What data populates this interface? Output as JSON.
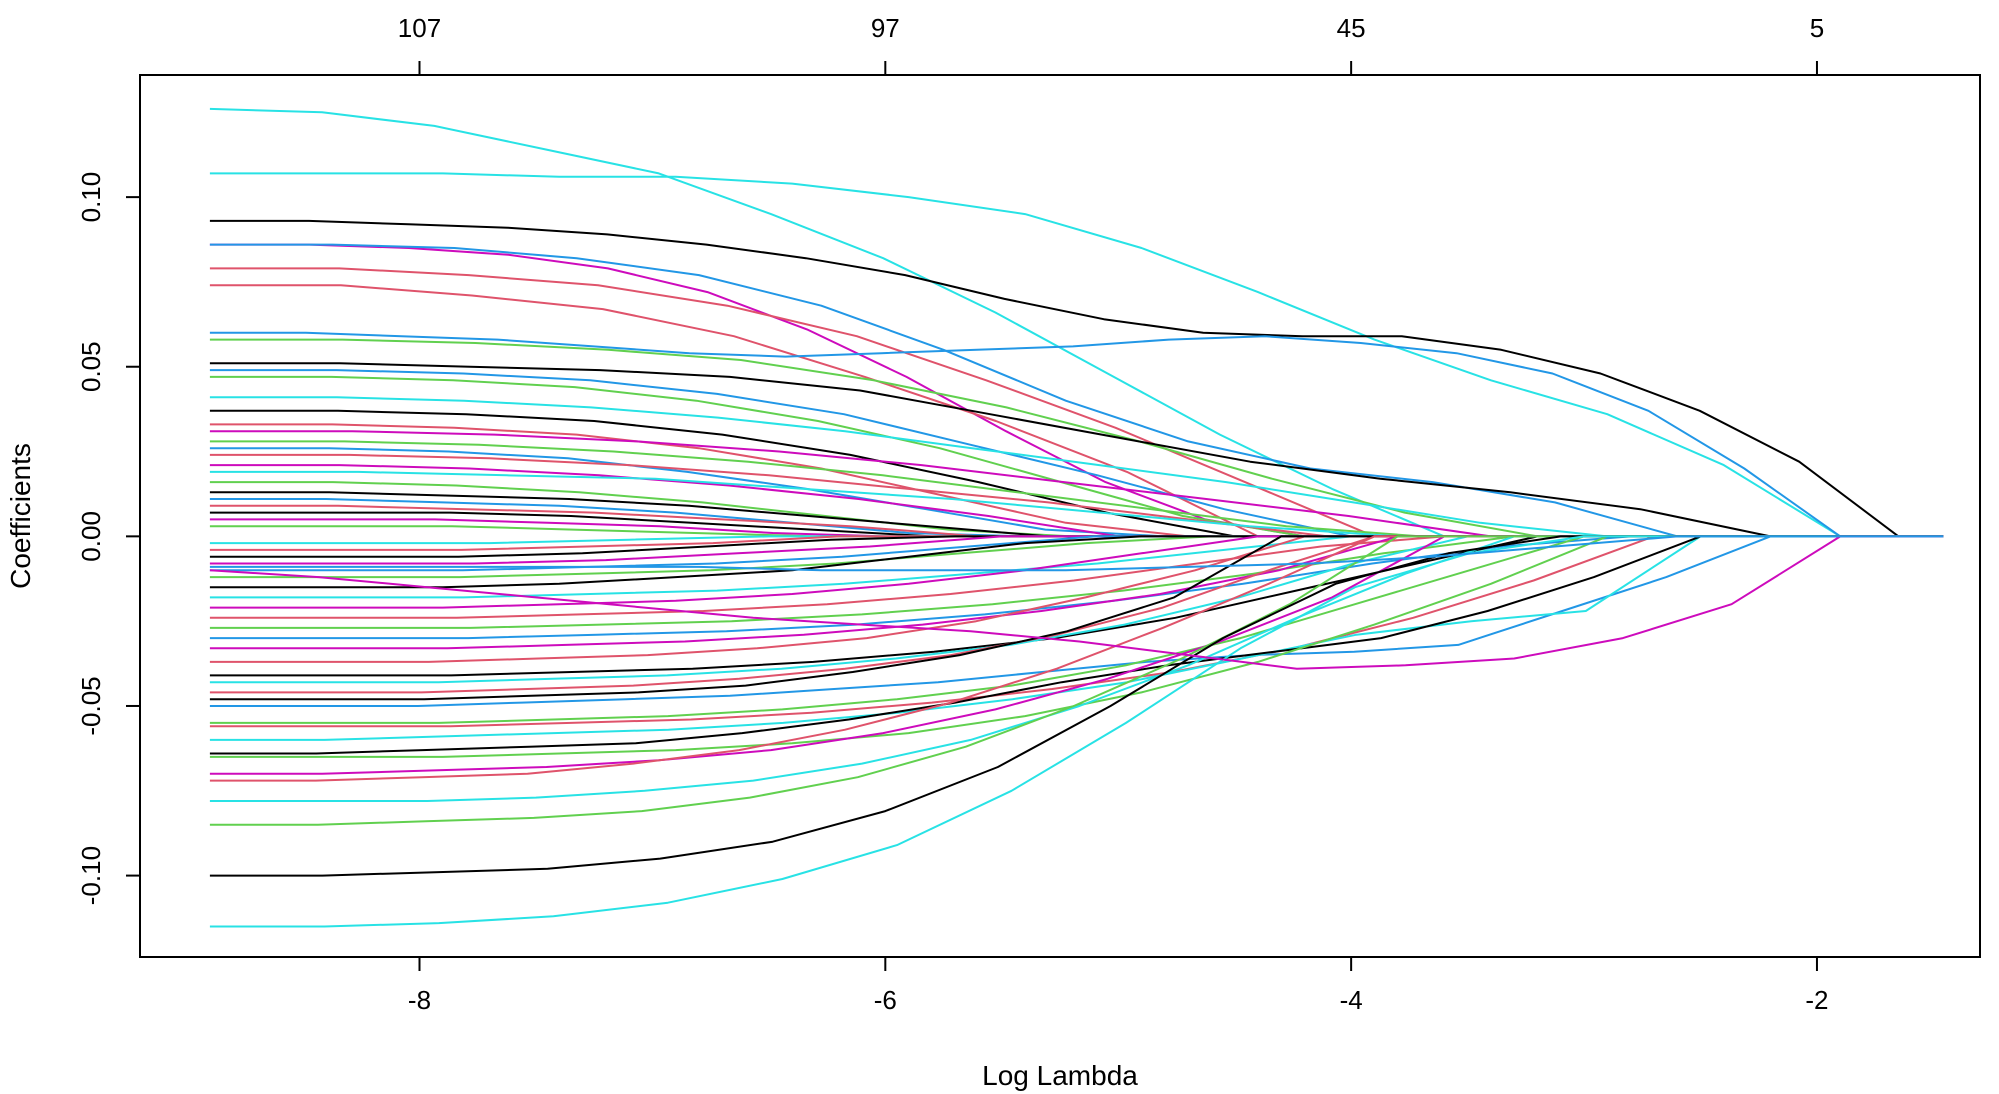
{
  "chart_data": {
    "type": "line",
    "title": "",
    "xlabel": "Log Lambda",
    "ylabel": "Coefficients",
    "xlim": [
      -9.2,
      -1.3
    ],
    "ylim": [
      -0.124,
      0.136
    ],
    "x_ticks": [
      -8,
      -6,
      -4,
      -2
    ],
    "x_tick_labels": [
      "-8",
      "-6",
      "-4",
      "-2"
    ],
    "y_ticks": [
      -0.1,
      -0.05,
      0.0,
      0.05,
      0.1
    ],
    "y_tick_labels": [
      "-0.10",
      "-0.05",
      "0.00",
      "0.05",
      "0.10"
    ],
    "top_axis": {
      "ticks": [
        -8,
        -6,
        -4,
        -2
      ],
      "labels": [
        "107",
        "97",
        "45",
        "5"
      ]
    },
    "grid": false,
    "legend": "none",
    "series_colors": [
      "#000000",
      "#df536b",
      "#61d04f",
      "#2297e6",
      "#28e2e5",
      "#cd0bbc"
    ],
    "x_start": -8.9,
    "series": [
      {
        "values": [
          0.126,
          0.125,
          0.121,
          0.114,
          0.107,
          0.095,
          0.082,
          0.066,
          0.048,
          0.03,
          0.014,
          0.0
        ],
        "zero_at": -3.6,
        "color": "#28e2e5"
      },
      {
        "values": [
          0.107,
          0.107,
          0.107,
          0.106,
          0.106,
          0.104,
          0.1,
          0.095,
          0.085,
          0.072,
          0.058,
          0.046,
          0.036,
          0.021,
          0.0
        ],
        "zero_at": -1.9,
        "color": "#28e2e5"
      },
      {
        "values": [
          0.093,
          0.093,
          0.092,
          0.091,
          0.089,
          0.086,
          0.082,
          0.077,
          0.07,
          0.064,
          0.06,
          0.059,
          0.059,
          0.055,
          0.048,
          0.037,
          0.022,
          0.0
        ],
        "zero_at": -1.65,
        "color": "#000000"
      },
      {
        "values": [
          0.086,
          0.086,
          0.085,
          0.083,
          0.079,
          0.072,
          0.061,
          0.047,
          0.031,
          0.016,
          0.005,
          0.0
        ],
        "zero_at": -4.2,
        "color": "#cd0bbc"
      },
      {
        "values": [
          0.086,
          0.086,
          0.085,
          0.082,
          0.077,
          0.068,
          0.055,
          0.04,
          0.028,
          0.02,
          0.016,
          0.01,
          0.0
        ],
        "zero_at": -2.6,
        "color": "#2297e6"
      },
      {
        "values": [
          0.079,
          0.079,
          0.077,
          0.074,
          0.068,
          0.059,
          0.046,
          0.032,
          0.016,
          0.0
        ],
        "zero_at": -3.9,
        "color": "#df536b"
      },
      {
        "values": [
          0.074,
          0.074,
          0.071,
          0.067,
          0.059,
          0.047,
          0.034,
          0.019,
          0.0
        ],
        "zero_at": -4.4,
        "color": "#df536b"
      },
      {
        "values": [
          0.06,
          0.06,
          0.059,
          0.058,
          0.056,
          0.054,
          0.053,
          0.054,
          0.055,
          0.056,
          0.058,
          0.059,
          0.057,
          0.054,
          0.048,
          0.037,
          0.02,
          0.0
        ],
        "zero_at": -1.9,
        "color": "#2297e6"
      },
      {
        "values": [
          0.058,
          0.058,
          0.057,
          0.055,
          0.052,
          0.046,
          0.038,
          0.028,
          0.017,
          0.007,
          0.0
        ],
        "zero_at": -3.2,
        "color": "#61d04f"
      },
      {
        "values": [
          0.051,
          0.051,
          0.05,
          0.049,
          0.047,
          0.043,
          0.036,
          0.029,
          0.022,
          0.017,
          0.013,
          0.008,
          0.0
        ],
        "zero_at": -2.2,
        "color": "#000000"
      },
      {
        "values": [
          0.049,
          0.049,
          0.048,
          0.046,
          0.042,
          0.036,
          0.027,
          0.018,
          0.008,
          0.0
        ],
        "zero_at": -4.0,
        "color": "#2297e6"
      },
      {
        "values": [
          0.047,
          0.047,
          0.046,
          0.044,
          0.04,
          0.034,
          0.026,
          0.016,
          0.006,
          0.0
        ],
        "zero_at": -4.2,
        "color": "#61d04f"
      },
      {
        "values": [
          0.041,
          0.041,
          0.04,
          0.038,
          0.035,
          0.031,
          0.026,
          0.021,
          0.016,
          0.01,
          0.004,
          0.0
        ],
        "zero_at": -2.9,
        "color": "#28e2e5"
      },
      {
        "values": [
          0.037,
          0.037,
          0.036,
          0.034,
          0.03,
          0.024,
          0.016,
          0.007,
          0.0
        ],
        "zero_at": -4.5,
        "color": "#000000"
      },
      {
        "values": [
          0.033,
          0.033,
          0.032,
          0.03,
          0.026,
          0.02,
          0.012,
          0.004,
          0.0
        ],
        "zero_at": -4.7,
        "color": "#df536b"
      },
      {
        "values": [
          0.031,
          0.031,
          0.03,
          0.028,
          0.025,
          0.021,
          0.016,
          0.011,
          0.006,
          0.0
        ],
        "zero_at": -3.4,
        "color": "#cd0bbc"
      },
      {
        "values": [
          0.028,
          0.028,
          0.027,
          0.025,
          0.022,
          0.018,
          0.013,
          0.008,
          0.003,
          0.0
        ],
        "zero_at": -3.7,
        "color": "#61d04f"
      },
      {
        "values": [
          0.026,
          0.026,
          0.025,
          0.023,
          0.019,
          0.014,
          0.008,
          0.002,
          0.0
        ],
        "zero_at": -4.8,
        "color": "#2297e6"
      },
      {
        "values": [
          0.024,
          0.024,
          0.023,
          0.021,
          0.018,
          0.014,
          0.01,
          0.005,
          0.0
        ],
        "zero_at": -4.1,
        "color": "#df536b"
      },
      {
        "values": [
          0.021,
          0.021,
          0.02,
          0.018,
          0.015,
          0.011,
          0.006,
          0.0
        ],
        "zero_at": -5.0,
        "color": "#cd0bbc"
      },
      {
        "values": [
          0.019,
          0.019,
          0.018,
          0.017,
          0.014,
          0.011,
          0.007,
          0.003,
          0.0
        ],
        "zero_at": -3.8,
        "color": "#28e2e5"
      },
      {
        "values": [
          0.016,
          0.016,
          0.015,
          0.013,
          0.01,
          0.006,
          0.002,
          0.0
        ],
        "zero_at": -5.2,
        "color": "#61d04f"
      },
      {
        "values": [
          0.013,
          0.013,
          0.012,
          0.011,
          0.009,
          0.006,
          0.003,
          0.0
        ],
        "zero_at": -5.3,
        "color": "#000000"
      },
      {
        "values": [
          0.011,
          0.011,
          0.01,
          0.009,
          0.007,
          0.004,
          0.001,
          0.0
        ],
        "zero_at": -5.4,
        "color": "#2297e6"
      },
      {
        "values": [
          0.009,
          0.009,
          0.008,
          0.007,
          0.005,
          0.003,
          0.0
        ],
        "zero_at": -5.6,
        "color": "#df536b"
      },
      {
        "values": [
          0.007,
          0.007,
          0.007,
          0.006,
          0.004,
          0.002,
          0.0
        ],
        "zero_at": -5.8,
        "color": "#000000"
      },
      {
        "values": [
          0.005,
          0.005,
          0.005,
          0.004,
          0.003,
          0.001,
          0.0
        ],
        "zero_at": -6.0,
        "color": "#cd0bbc"
      },
      {
        "values": [
          0.003,
          0.003,
          0.003,
          0.002,
          0.001,
          0.0
        ],
        "zero_at": -6.3,
        "color": "#61d04f"
      },
      {
        "values": [
          -0.002,
          -0.002,
          -0.002,
          -0.001,
          0.0
        ],
        "zero_at": -6.5,
        "color": "#28e2e5"
      },
      {
        "values": [
          -0.004,
          -0.004,
          -0.004,
          -0.003,
          -0.002,
          0.0
        ],
        "zero_at": -6.2,
        "color": "#df536b"
      },
      {
        "values": [
          -0.006,
          -0.006,
          -0.006,
          -0.005,
          -0.003,
          -0.001,
          0.0
        ],
        "zero_at": -5.7,
        "color": "#000000"
      },
      {
        "values": [
          -0.008,
          -0.008,
          -0.008,
          -0.007,
          -0.005,
          -0.003,
          0.0
        ],
        "zero_at": -5.5,
        "color": "#cd0bbc"
      },
      {
        "values": [
          -0.01,
          -0.01,
          -0.01,
          -0.009,
          -0.008,
          -0.006,
          -0.003,
          0.0
        ],
        "zero_at": -5.1,
        "color": "#2297e6"
      },
      {
        "values": [
          -0.012,
          -0.012,
          -0.012,
          -0.011,
          -0.01,
          -0.008,
          -0.005,
          -0.002,
          0.0
        ],
        "zero_at": -4.6,
        "color": "#61d04f"
      },
      {
        "values": [
          -0.015,
          -0.015,
          -0.015,
          -0.014,
          -0.012,
          -0.01,
          -0.006,
          -0.002,
          0.0
        ],
        "zero_at": -4.9,
        "color": "#000000"
      },
      {
        "values": [
          -0.018,
          -0.018,
          -0.018,
          -0.017,
          -0.016,
          -0.014,
          -0.011,
          -0.008,
          -0.004,
          0.0
        ],
        "zero_at": -4.0,
        "color": "#28e2e5"
      },
      {
        "values": [
          -0.021,
          -0.021,
          -0.021,
          -0.02,
          -0.019,
          -0.017,
          -0.014,
          -0.01,
          -0.005,
          0.0
        ],
        "zero_at": -4.4,
        "color": "#cd0bbc"
      },
      {
        "values": [
          -0.024,
          -0.024,
          -0.024,
          -0.023,
          -0.022,
          -0.02,
          -0.017,
          -0.013,
          -0.008,
          -0.003,
          0.0
        ],
        "zero_at": -3.6,
        "color": "#df536b"
      },
      {
        "values": [
          -0.027,
          -0.027,
          -0.027,
          -0.026,
          -0.025,
          -0.023,
          -0.02,
          -0.016,
          -0.011,
          -0.005,
          0.0
        ],
        "zero_at": -3.3,
        "color": "#61d04f"
      },
      {
        "values": [
          -0.03,
          -0.03,
          -0.03,
          -0.029,
          -0.028,
          -0.026,
          -0.023,
          -0.019,
          -0.014,
          -0.008,
          -0.003,
          0.0
        ],
        "zero_at": -2.8,
        "color": "#2297e6"
      },
      {
        "values": [
          -0.033,
          -0.033,
          -0.033,
          -0.032,
          -0.031,
          -0.029,
          -0.026,
          -0.022,
          -0.017,
          -0.01,
          0.0
        ],
        "zero_at": -3.8,
        "color": "#cd0bbc"
      },
      {
        "values": [
          -0.037,
          -0.037,
          -0.037,
          -0.036,
          -0.035,
          -0.033,
          -0.03,
          -0.025,
          -0.018,
          -0.01,
          0.0
        ],
        "zero_at": -4.2,
        "color": "#df536b"
      },
      {
        "values": [
          -0.041,
          -0.041,
          -0.041,
          -0.04,
          -0.039,
          -0.037,
          -0.034,
          -0.03,
          -0.024,
          -0.016,
          -0.008,
          0.0
        ],
        "zero_at": -3.2,
        "color": "#000000"
      },
      {
        "values": [
          -0.043,
          -0.043,
          -0.043,
          -0.042,
          -0.041,
          -0.039,
          -0.036,
          -0.032,
          -0.026,
          -0.018,
          -0.008,
          0.0
        ],
        "zero_at": -3.5,
        "color": "#28e2e5"
      },
      {
        "values": [
          -0.046,
          -0.046,
          -0.046,
          -0.045,
          -0.044,
          -0.042,
          -0.039,
          -0.035,
          -0.029,
          -0.021,
          -0.01,
          0.0
        ],
        "zero_at": -3.9,
        "color": "#df536b"
      },
      {
        "values": [
          -0.048,
          -0.048,
          -0.048,
          -0.047,
          -0.046,
          -0.044,
          -0.04,
          -0.035,
          -0.028,
          -0.018,
          0.0
        ],
        "zero_at": -4.3,
        "color": "#000000"
      },
      {
        "values": [
          -0.05,
          -0.05,
          -0.05,
          -0.049,
          -0.048,
          -0.047,
          -0.045,
          -0.043,
          -0.04,
          -0.037,
          -0.035,
          -0.034,
          -0.032,
          -0.022,
          -0.012,
          0.0
        ],
        "zero_at": -2.2,
        "color": "#2297e6"
      },
      {
        "values": [
          -0.055,
          -0.055,
          -0.055,
          -0.054,
          -0.053,
          -0.051,
          -0.048,
          -0.044,
          -0.038,
          -0.03,
          -0.02,
          -0.01,
          0.0
        ],
        "zero_at": -3.0,
        "color": "#61d04f"
      },
      {
        "values": [
          -0.056,
          -0.056,
          -0.056,
          -0.055,
          -0.054,
          -0.052,
          -0.049,
          -0.045,
          -0.04,
          -0.033,
          -0.024,
          -0.013,
          0.0
        ],
        "zero_at": -2.7,
        "color": "#df536b"
      },
      {
        "values": [
          -0.06,
          -0.06,
          -0.059,
          -0.058,
          -0.057,
          -0.055,
          -0.052,
          -0.048,
          -0.043,
          -0.036,
          -0.029,
          -0.025,
          -0.022,
          0.0
        ],
        "zero_at": -2.5,
        "color": "#28e2e5"
      },
      {
        "values": [
          -0.064,
          -0.064,
          -0.063,
          -0.062,
          -0.061,
          -0.058,
          -0.054,
          -0.049,
          -0.043,
          -0.038,
          -0.034,
          -0.03,
          -0.022,
          -0.012,
          0.0
        ],
        "zero_at": -2.5,
        "color": "#000000"
      },
      {
        "values": [
          -0.065,
          -0.065,
          -0.065,
          -0.064,
          -0.063,
          -0.061,
          -0.058,
          -0.053,
          -0.046,
          -0.037,
          -0.026,
          -0.014,
          0.0
        ],
        "zero_at": -2.9,
        "color": "#61d04f"
      },
      {
        "values": [
          -0.07,
          -0.07,
          -0.069,
          -0.068,
          -0.066,
          -0.063,
          -0.058,
          -0.051,
          -0.042,
          -0.031,
          -0.018,
          0.0
        ],
        "zero_at": -3.6,
        "color": "#cd0bbc"
      },
      {
        "values": [
          -0.072,
          -0.072,
          -0.071,
          -0.07,
          -0.067,
          -0.063,
          -0.057,
          -0.049,
          -0.039,
          -0.027,
          -0.014,
          0.0
        ],
        "zero_at": -3.9,
        "color": "#df536b"
      },
      {
        "values": [
          -0.078,
          -0.078,
          -0.078,
          -0.077,
          -0.075,
          -0.072,
          -0.067,
          -0.06,
          -0.05,
          -0.038,
          -0.024,
          -0.011,
          0.0
        ],
        "zero_at": -3.3,
        "color": "#28e2e5"
      },
      {
        "values": [
          -0.085,
          -0.085,
          -0.084,
          -0.083,
          -0.081,
          -0.077,
          -0.071,
          -0.062,
          -0.05,
          -0.036,
          -0.02,
          0.0
        ],
        "zero_at": -3.8,
        "color": "#61d04f"
      },
      {
        "values": [
          -0.1,
          -0.1,
          -0.099,
          -0.098,
          -0.095,
          -0.09,
          -0.081,
          -0.068,
          -0.05,
          -0.03,
          -0.014,
          -0.005,
          0.0
        ],
        "zero_at": -3.1,
        "color": "#000000"
      },
      {
        "values": [
          -0.115,
          -0.115,
          -0.114,
          -0.112,
          -0.108,
          -0.101,
          -0.091,
          -0.075,
          -0.055,
          -0.033,
          -0.015,
          -0.005,
          0.0
        ],
        "zero_at": -3.0,
        "color": "#28e2e5"
      },
      {
        "values": [
          -0.01,
          -0.012,
          -0.015,
          -0.018,
          -0.021,
          -0.024,
          -0.026,
          -0.028,
          -0.031,
          -0.035,
          -0.039,
          -0.038,
          -0.036,
          -0.03,
          -0.02,
          0.0
        ],
        "zero_at": -1.9,
        "color": "#cd0bbc"
      },
      {
        "values": [
          -0.009,
          -0.009,
          -0.009,
          -0.009,
          -0.009,
          -0.01,
          -0.01,
          -0.01,
          -0.009,
          -0.008,
          -0.006,
          -0.003,
          0.0
        ],
        "zero_at": -2.6,
        "color": "#2297e6"
      }
    ]
  }
}
